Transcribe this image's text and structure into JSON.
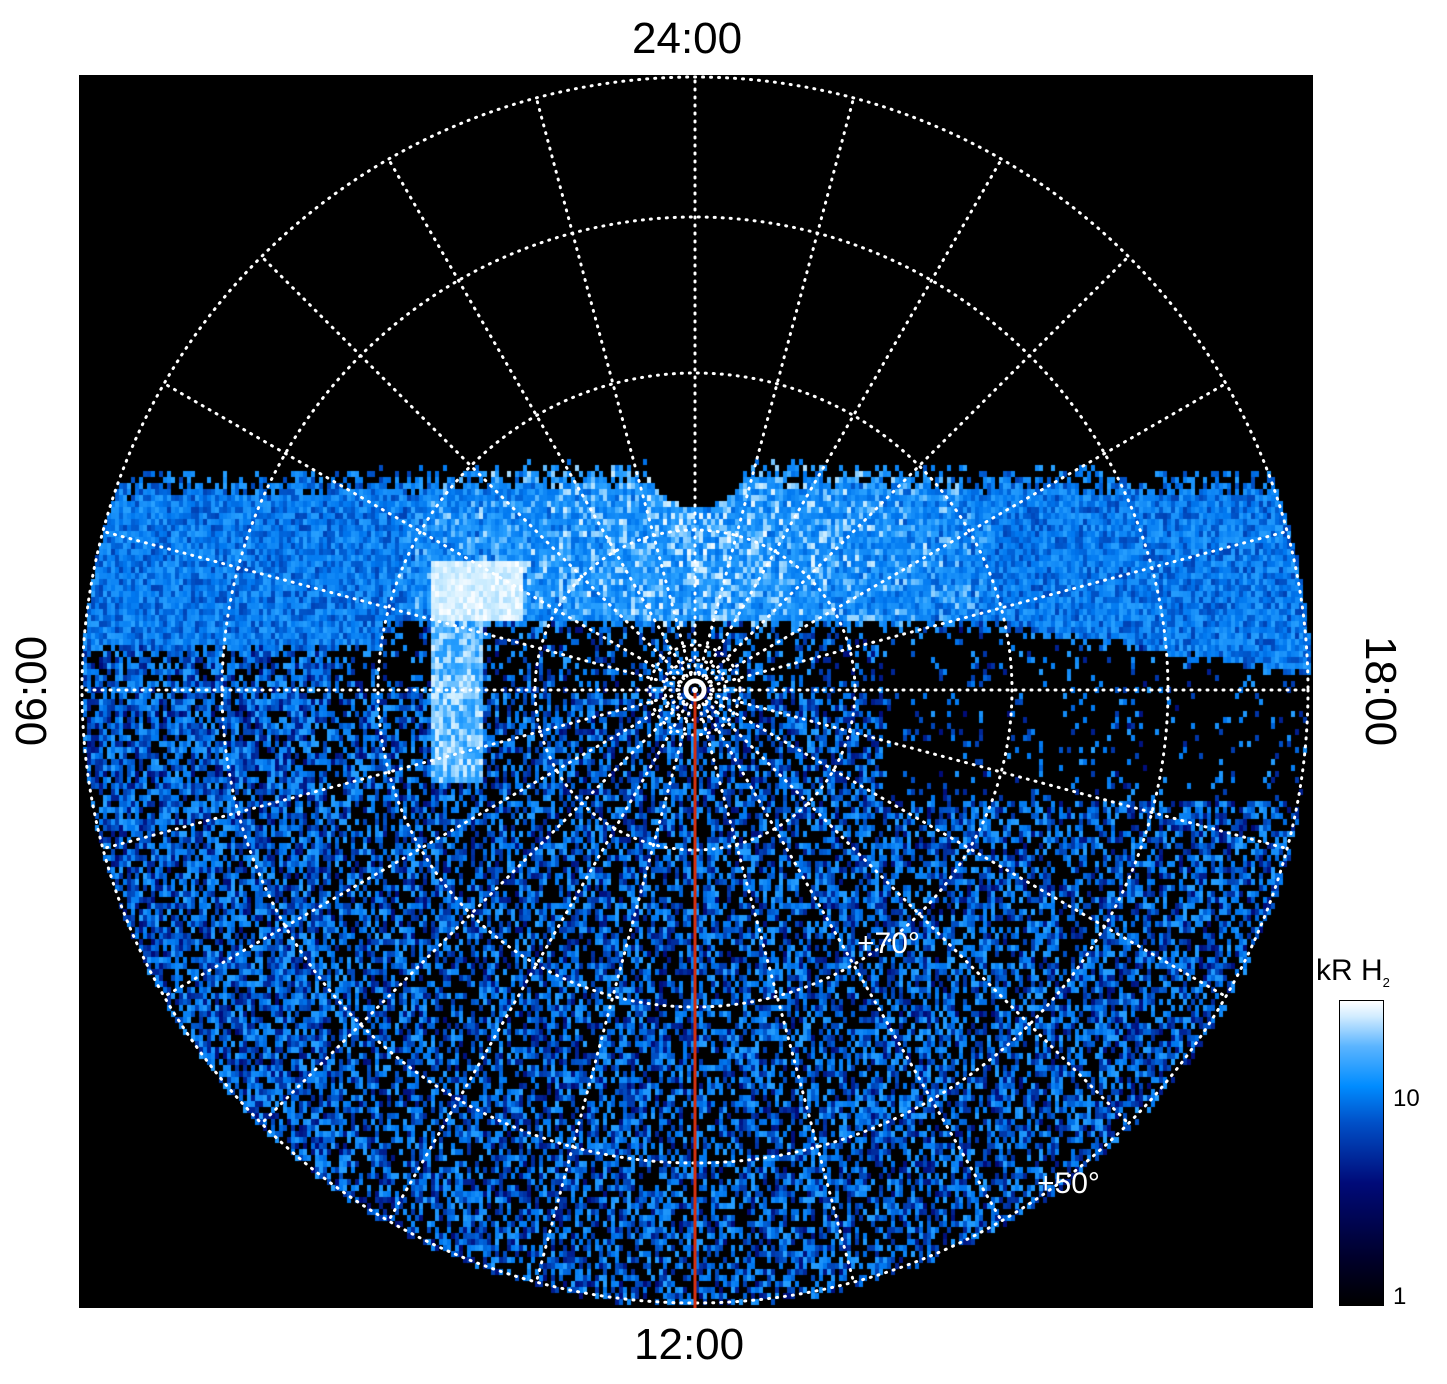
{
  "chart_data": {
    "type": "heatmap",
    "projection": "polar",
    "local_time_labels": {
      "top": "24:00",
      "bottom": "12:00",
      "left": "06:00",
      "right": "18:00"
    },
    "latitude_labels": [
      "+70°",
      "+50°"
    ],
    "grid": true,
    "grid_style": "dotted white",
    "colorbar": {
      "label": "kR H",
      "label_subscript": "2",
      "scale": "log",
      "ticks": [
        "10",
        "1"
      ],
      "range": [
        1,
        30
      ],
      "colors": [
        "#000000",
        "#000a78",
        "#008cff",
        "#ffffff"
      ]
    },
    "highlight_line": {
      "color": "#d03010",
      "local_time": "12:00"
    }
  }
}
